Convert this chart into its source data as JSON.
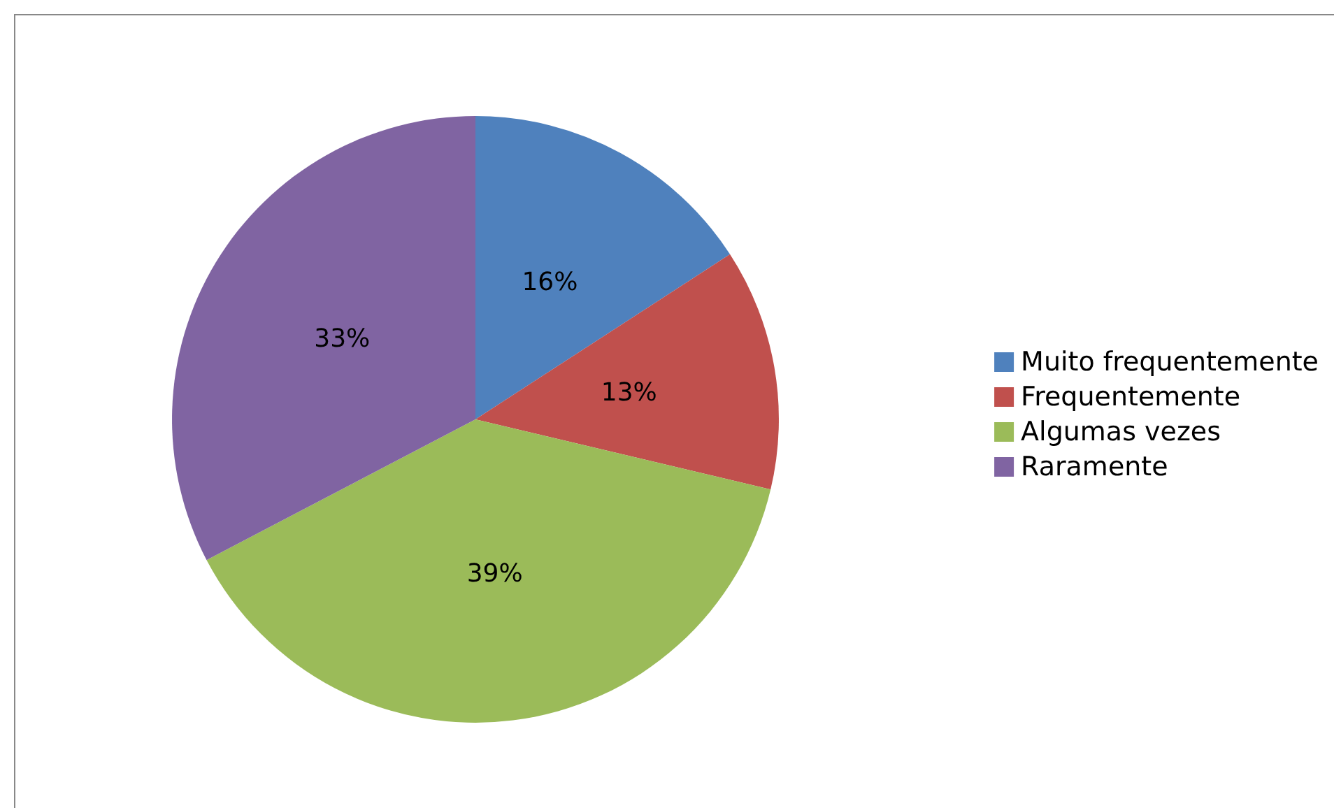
{
  "chart_data": {
    "type": "pie",
    "categories": [
      "Muito frequentemente",
      "Frequentemente",
      "Algumas vezes",
      "Raramente"
    ],
    "values": [
      16,
      13,
      39,
      33
    ],
    "colors": [
      "#4f81bd",
      "#c0504d",
      "#9bbb59",
      "#8064a2"
    ],
    "value_labels": [
      "16%",
      "13%",
      "39%",
      "33%"
    ],
    "legend": "right"
  }
}
